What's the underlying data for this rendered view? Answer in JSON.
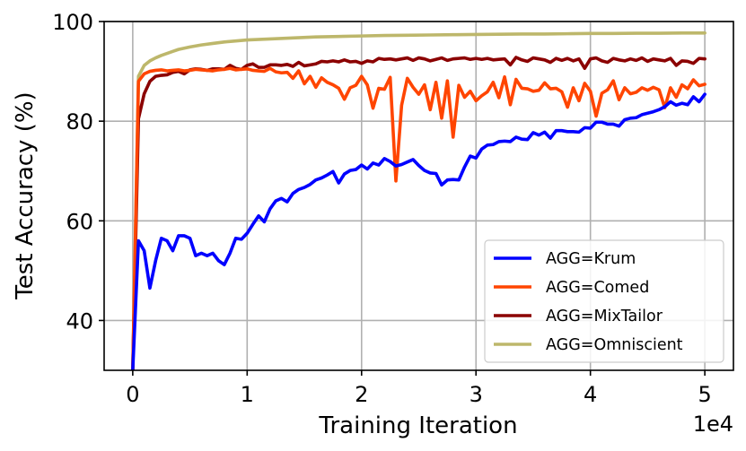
{
  "chart_data": {
    "type": "line",
    "xlabel": "Training Iteration",
    "ylabel": "Test Accuracy (%)",
    "x_scale_label": "1e4",
    "xlim": [
      -2500,
      52500
    ],
    "ylim": [
      30,
      100
    ],
    "xticks": [
      0,
      10000,
      20000,
      30000,
      40000,
      50000
    ],
    "xtick_labels": [
      "0",
      "1",
      "2",
      "3",
      "4",
      "5"
    ],
    "yticks": [
      40,
      60,
      80,
      100
    ],
    "ytick_labels": [
      "40",
      "60",
      "80",
      "100"
    ],
    "grid": true,
    "legend_position": "lower-right",
    "series": [
      {
        "name": "AGG=Krum",
        "color": "#0000ff",
        "x": [
          0,
          500,
          1000,
          1500,
          2000,
          2500,
          3000,
          3500,
          4000,
          4500,
          5000,
          5500,
          6000,
          6500,
          7000,
          7500,
          8000,
          8500,
          9000,
          9500,
          10000,
          10500,
          11000,
          11500,
          12000,
          12500,
          13000,
          13500,
          14000,
          14500,
          15000,
          15500,
          16000,
          16500,
          17000,
          17500,
          18000,
          18500,
          19000,
          19500,
          20000,
          20500,
          21000,
          21500,
          22000,
          22500,
          23000,
          23500,
          24000,
          24500,
          25000,
          25500,
          26000,
          26500,
          27000,
          27500,
          28000,
          28500,
          29000,
          29500,
          30000,
          30500,
          31000,
          31500,
          32000,
          32500,
          33000,
          33500,
          34000,
          34500,
          35000,
          35500,
          36000,
          36500,
          37000,
          37500,
          38000,
          38500,
          39000,
          39500,
          40000,
          40500,
          41000,
          41500,
          42000,
          42500,
          43000,
          43500,
          44000,
          44500,
          45000,
          45500,
          46000,
          46500,
          47000,
          47500,
          48000,
          48500,
          49000,
          49500,
          50000
        ],
        "values": [
          30,
          56,
          54,
          46.5,
          52,
          56.5,
          56,
          54,
          57,
          57,
          56.5,
          53,
          53.5,
          53,
          53.5,
          52,
          51.2,
          53.5,
          56.5,
          56.3,
          57.5,
          59.3,
          61,
          59.8,
          62.4,
          64,
          64.5,
          63.8,
          65.5,
          66.3,
          66.7,
          67.3,
          68.2,
          68.6,
          69.2,
          69.9,
          67.6,
          69.4,
          70.1,
          70.3,
          71.2,
          70.4,
          71.6,
          71.2,
          72.5,
          71.9,
          71,
          71.3,
          71.8,
          72.3,
          71.1,
          70.1,
          69.6,
          69.5,
          67.2,
          68.2,
          68.3,
          68.2,
          70.8,
          73,
          72.6,
          74.4,
          75.2,
          75.3,
          75.9,
          76,
          75.9,
          76.8,
          76.4,
          76.3,
          77.7,
          77.2,
          77.8,
          76.6,
          78.1,
          78.1,
          77.9,
          77.9,
          77.8,
          78.7,
          78.6,
          79.8,
          79.8,
          79.4,
          79.4,
          79,
          80.3,
          80.6,
          80.7,
          81.3,
          81.6,
          81.9,
          82.3,
          82.9,
          83.9,
          83.2,
          83.6,
          83.3,
          84.9,
          83.9,
          85.4
        ]
      },
      {
        "name": "AGG=Comed",
        "color": "#ff4500",
        "x": [
          0,
          500,
          1000,
          1500,
          2000,
          2500,
          3000,
          3500,
          4000,
          4500,
          5000,
          5500,
          6000,
          6500,
          7000,
          7500,
          8000,
          8500,
          9000,
          9500,
          10000,
          10500,
          11000,
          11500,
          12000,
          12500,
          13000,
          13500,
          14000,
          14500,
          15000,
          15500,
          16000,
          16500,
          17000,
          17500,
          18000,
          18500,
          19000,
          19500,
          20000,
          20500,
          21000,
          21500,
          22000,
          22500,
          23000,
          23500,
          24000,
          24500,
          25000,
          25500,
          26000,
          26500,
          27000,
          27500,
          28000,
          28500,
          29000,
          29500,
          30000,
          30500,
          31000,
          31500,
          32000,
          32500,
          33000,
          33500,
          34000,
          34500,
          35000,
          35500,
          36000,
          36500,
          37000,
          37500,
          38000,
          38500,
          39000,
          39500,
          40000,
          40500,
          41000,
          41500,
          42000,
          42500,
          43000,
          43500,
          44000,
          44500,
          45000,
          45500,
          46000,
          46500,
          47000,
          47500,
          48000,
          48500,
          49000,
          49500,
          50000
        ],
        "values": [
          30,
          88,
          89.5,
          90,
          90.2,
          90.3,
          90.1,
          90.2,
          90.3,
          90.1,
          90.2,
          90.4,
          90.3,
          90.2,
          90.1,
          90.3,
          90.4,
          90.6,
          90.3,
          90.4,
          90.5,
          90.2,
          90.1,
          90,
          90.6,
          89.9,
          89.7,
          89.8,
          88.6,
          90.1,
          87.5,
          89,
          86.8,
          88.7,
          87.8,
          87.3,
          86.6,
          84.4,
          86.7,
          87.2,
          89,
          87.3,
          82.6,
          86.6,
          86.4,
          88.8,
          68,
          83.2,
          88.6,
          86.8,
          85.4,
          87.3,
          82.3,
          87.8,
          80.6,
          88.1,
          76.8,
          87.2,
          84.8,
          86,
          84.1,
          85.1,
          85.9,
          87.8,
          84.7,
          88.9,
          83.3,
          88.4,
          86.6,
          86.5,
          86,
          86.2,
          87.7,
          86.5,
          86.6,
          85.9,
          82.8,
          86.7,
          84.1,
          87.6,
          86,
          81,
          85.6,
          86.3,
          88.1,
          84.3,
          86.7,
          85.5,
          85.8,
          86.7,
          86.2,
          86.8,
          86.3,
          82.7,
          86.7,
          84.8,
          87.3,
          86.5,
          88.3,
          87.1,
          87.4
        ]
      },
      {
        "name": "AGG=MixTailor",
        "color": "#8b0000",
        "x": [
          0,
          500,
          1000,
          1500,
          2000,
          2500,
          3000,
          3500,
          4000,
          4500,
          5000,
          5500,
          6000,
          6500,
          7000,
          7500,
          8000,
          8500,
          9000,
          9500,
          10000,
          10500,
          11000,
          11500,
          12000,
          12500,
          13000,
          13500,
          14000,
          14500,
          15000,
          15500,
          16000,
          16500,
          17000,
          17500,
          18000,
          18500,
          19000,
          19500,
          20000,
          20500,
          21000,
          21500,
          22000,
          22500,
          23000,
          23500,
          24000,
          24500,
          25000,
          25500,
          26000,
          26500,
          27000,
          27500,
          28000,
          28500,
          29000,
          29500,
          30000,
          30500,
          31000,
          31500,
          32000,
          32500,
          33000,
          33500,
          34000,
          34500,
          35000,
          35500,
          36000,
          36500,
          37000,
          37500,
          38000,
          38500,
          39000,
          39500,
          40000,
          40500,
          41000,
          41500,
          42000,
          42500,
          43000,
          43500,
          44000,
          44500,
          45000,
          45500,
          46000,
          46500,
          47000,
          47500,
          48000,
          48500,
          49000,
          49500,
          50000
        ],
        "values": [
          30,
          80.5,
          85.5,
          88,
          89,
          89.2,
          89.3,
          89.8,
          90,
          89.5,
          90.3,
          90.5,
          90.4,
          90.2,
          90.5,
          90.5,
          90.4,
          91.2,
          90.6,
          90.4,
          91.2,
          91.5,
          90.8,
          90.8,
          91.3,
          91.3,
          91.2,
          91.4,
          91,
          91.8,
          91.1,
          91.3,
          91.5,
          92,
          91.9,
          92.1,
          91.9,
          92.3,
          91.9,
          92,
          91.6,
          92.1,
          91.9,
          92.6,
          92.4,
          92.5,
          92.3,
          92.5,
          92.7,
          92.2,
          92.7,
          92.5,
          92.1,
          92.4,
          92.7,
          92.2,
          92.5,
          92.6,
          92.7,
          92.4,
          92.6,
          92.4,
          92.6,
          92.3,
          92.4,
          92.5,
          91.3,
          92.8,
          92.3,
          92,
          92.7,
          92.5,
          92.3,
          91.8,
          92.6,
          92.2,
          92.6,
          92.1,
          92.5,
          90.6,
          92.5,
          92.7,
          92.1,
          91.8,
          92.6,
          92.3,
          92.1,
          92.5,
          92.2,
          92.7,
          92,
          92.5,
          92.3,
          92.1,
          92.6,
          91.2,
          92.1,
          92,
          91.6,
          92.6,
          92.5
        ]
      },
      {
        "name": "AGG=Omniscient",
        "color": "#bdb76b",
        "x": [
          0,
          500,
          1000,
          1500,
          2000,
          2500,
          3000,
          3500,
          4000,
          5000,
          6000,
          7000,
          8000,
          9000,
          10000,
          12000,
          14000,
          16000,
          18000,
          20000,
          22000,
          24000,
          26000,
          28000,
          30000,
          32000,
          34000,
          36000,
          38000,
          40000,
          42000,
          44000,
          46000,
          48000,
          50000
        ],
        "values": [
          30,
          89,
          91.2,
          92.1,
          92.7,
          93.2,
          93.6,
          94,
          94.4,
          94.9,
          95.3,
          95.6,
          95.9,
          96.1,
          96.3,
          96.5,
          96.7,
          96.9,
          97,
          97.1,
          97.2,
          97.25,
          97.3,
          97.35,
          97.4,
          97.45,
          97.5,
          97.5,
          97.55,
          97.6,
          97.6,
          97.65,
          97.65,
          97.7,
          97.7
        ]
      }
    ]
  }
}
